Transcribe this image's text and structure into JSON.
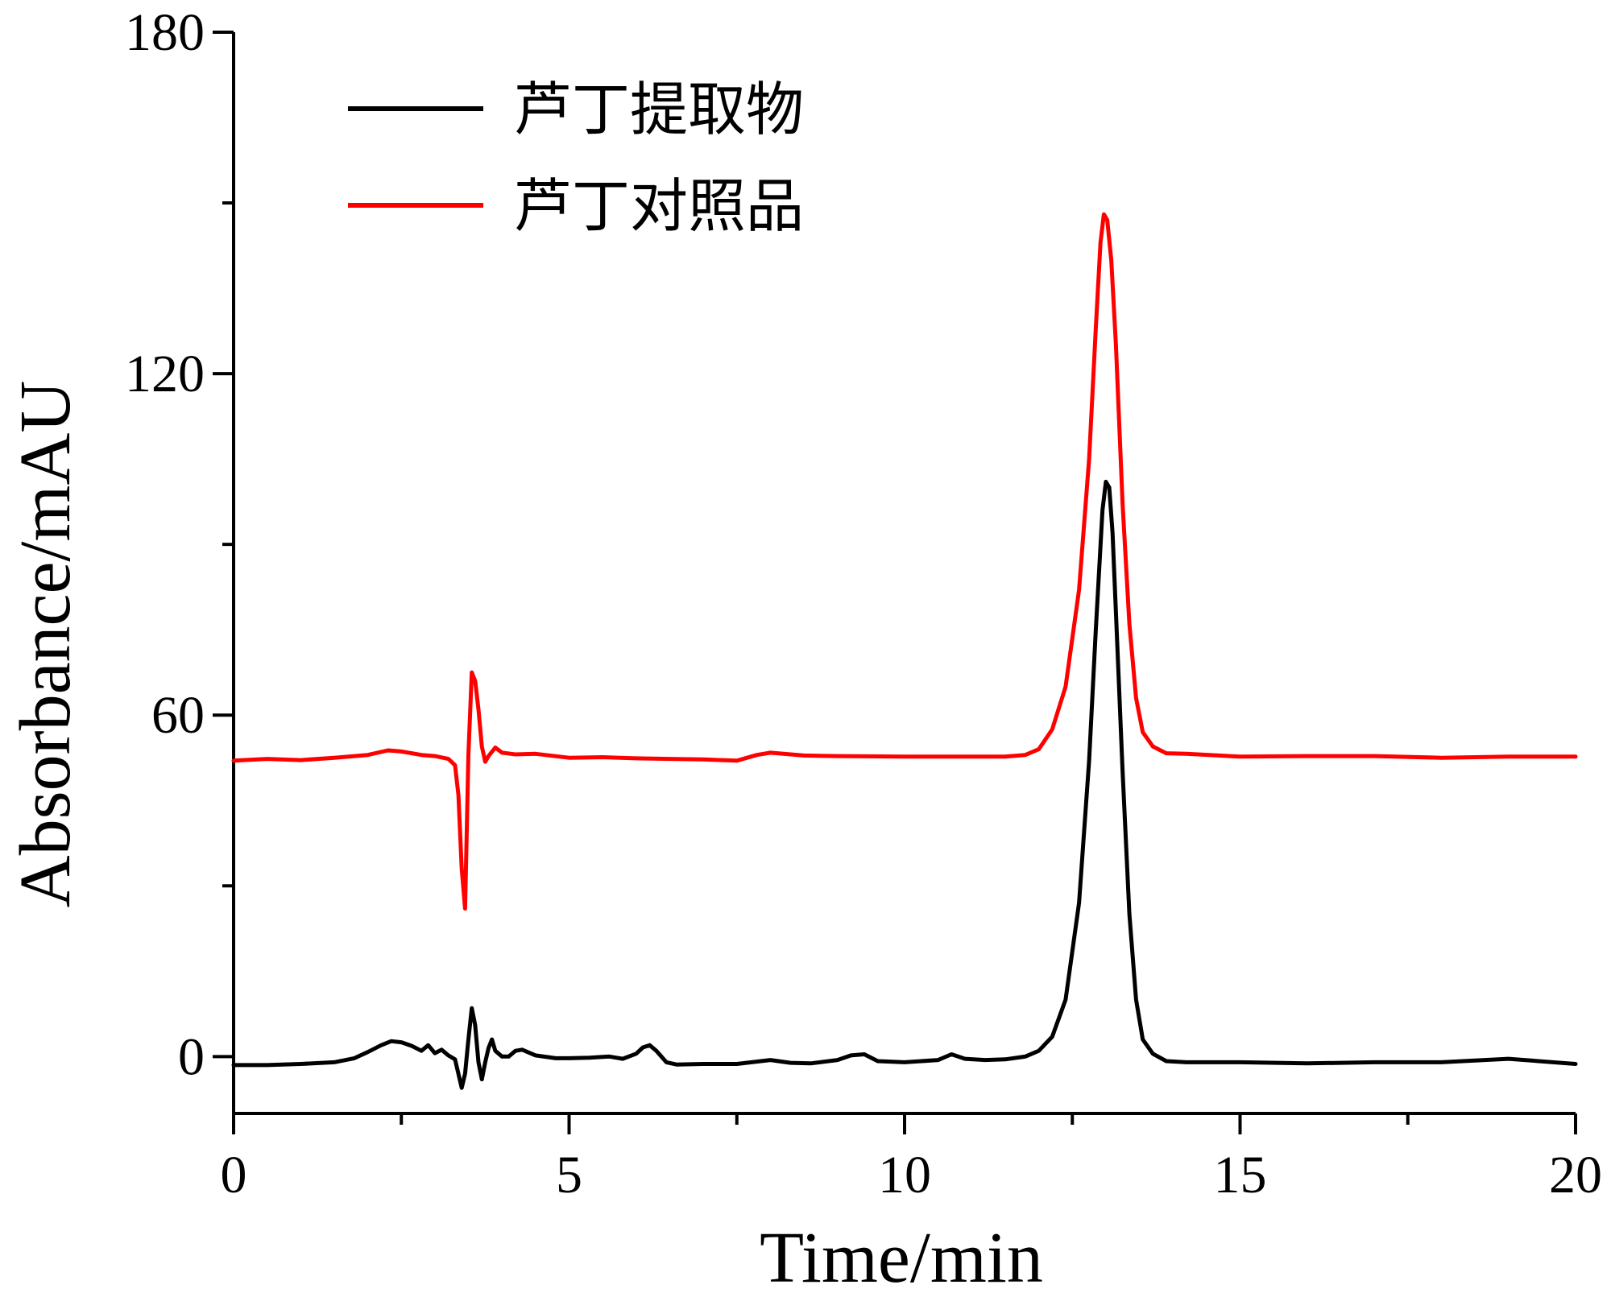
{
  "chart_data": {
    "type": "line",
    "xlabel": "Time/min",
    "ylabel": "Absorbance/mAU",
    "xlim": [
      0,
      20
    ],
    "ylim": [
      -10,
      180
    ],
    "x_ticks": [
      0,
      5,
      10,
      15,
      20
    ],
    "x_tick_labels": [
      "0",
      "5",
      "10",
      "15",
      "20"
    ],
    "y_ticks": [
      0,
      60,
      120,
      180
    ],
    "y_tick_labels": [
      "0",
      "60",
      "120",
      "180"
    ],
    "grid": false,
    "legend_position": "top-left",
    "series": [
      {
        "name": "芦丁提取物",
        "color": "#000000",
        "x": [
          0,
          0.5,
          1.0,
          1.5,
          1.8,
          2.0,
          2.2,
          2.35,
          2.5,
          2.65,
          2.8,
          2.9,
          3.0,
          3.1,
          3.2,
          3.3,
          3.4,
          3.45,
          3.5,
          3.55,
          3.6,
          3.65,
          3.7,
          3.75,
          3.8,
          3.85,
          3.9,
          4.0,
          4.1,
          4.2,
          4.3,
          4.5,
          4.8,
          5.0,
          5.3,
          5.6,
          5.8,
          6.0,
          6.1,
          6.2,
          6.3,
          6.45,
          6.6,
          7.0,
          7.5,
          8.0,
          8.3,
          8.6,
          9.0,
          9.2,
          9.4,
          9.6,
          10.0,
          10.5,
          10.7,
          10.9,
          11.2,
          11.5,
          11.8,
          12.0,
          12.2,
          12.4,
          12.6,
          12.75,
          12.85,
          12.95,
          13.0,
          13.05,
          13.1,
          13.15,
          13.25,
          13.35,
          13.45,
          13.55,
          13.7,
          13.9,
          14.2,
          15.0,
          16.0,
          17.0,
          18.0,
          19.0,
          20.0
        ],
        "values": [
          -1.5,
          -1.5,
          -1.3,
          -1.0,
          -0.3,
          0.8,
          2.0,
          2.7,
          2.5,
          1.9,
          1.0,
          2.0,
          0.6,
          1.2,
          0.2,
          -0.5,
          -5.5,
          -3.0,
          3.0,
          8.5,
          5.5,
          -1.0,
          -4.0,
          -1.0,
          1.5,
          3.0,
          1.0,
          0.0,
          0.0,
          1.0,
          1.2,
          0.2,
          -0.3,
          -0.3,
          -0.2,
          0.0,
          -0.4,
          0.5,
          1.6,
          2.0,
          1.0,
          -1.0,
          -1.4,
          -1.3,
          -1.3,
          -0.6,
          -1.1,
          -1.2,
          -0.6,
          0.2,
          0.4,
          -0.8,
          -1.0,
          -0.6,
          0.4,
          -0.4,
          -0.6,
          -0.5,
          0.0,
          1.0,
          3.5,
          10.0,
          27.0,
          52.0,
          75.0,
          96.0,
          101.0,
          100.0,
          92.0,
          78.0,
          50.0,
          25.0,
          10.0,
          3.0,
          0.5,
          -0.8,
          -1.0,
          -1.0,
          -1.2,
          -1.0,
          -1.0,
          -0.4,
          -1.3
        ]
      },
      {
        "name": "芦丁对照品",
        "color": "#ff0000",
        "x": [
          0,
          0.5,
          1.0,
          1.5,
          2.0,
          2.3,
          2.5,
          2.8,
          3.0,
          3.2,
          3.3,
          3.35,
          3.4,
          3.45,
          3.5,
          3.55,
          3.6,
          3.65,
          3.7,
          3.75,
          3.8,
          3.9,
          4.0,
          4.2,
          4.5,
          5.0,
          5.5,
          6.0,
          6.5,
          7.0,
          7.5,
          7.8,
          8.0,
          8.5,
          9.0,
          10.0,
          11.0,
          11.5,
          11.8,
          12.0,
          12.2,
          12.4,
          12.6,
          12.75,
          12.85,
          12.92,
          12.97,
          13.02,
          13.08,
          13.15,
          13.25,
          13.35,
          13.45,
          13.55,
          13.7,
          13.9,
          14.2,
          15.0,
          16.0,
          17.0,
          18.0,
          19.0,
          20.0
        ],
        "values": [
          52.0,
          52.3,
          52.1,
          52.5,
          53.0,
          53.8,
          53.6,
          53.0,
          52.8,
          52.3,
          51.2,
          46.0,
          33.0,
          26.0,
          53.0,
          67.5,
          66.0,
          61.0,
          54.5,
          51.8,
          52.8,
          54.3,
          53.4,
          53.1,
          53.2,
          52.5,
          52.6,
          52.4,
          52.3,
          52.2,
          52.0,
          53.0,
          53.4,
          52.9,
          52.8,
          52.7,
          52.7,
          52.7,
          53.0,
          54.0,
          57.5,
          65.0,
          82.0,
          105.0,
          128.0,
          143.0,
          148.0,
          147.0,
          140.0,
          125.0,
          97.0,
          76.0,
          63.0,
          57.0,
          54.5,
          53.3,
          53.2,
          52.7,
          52.8,
          52.8,
          52.5,
          52.7,
          52.7
        ]
      }
    ]
  }
}
